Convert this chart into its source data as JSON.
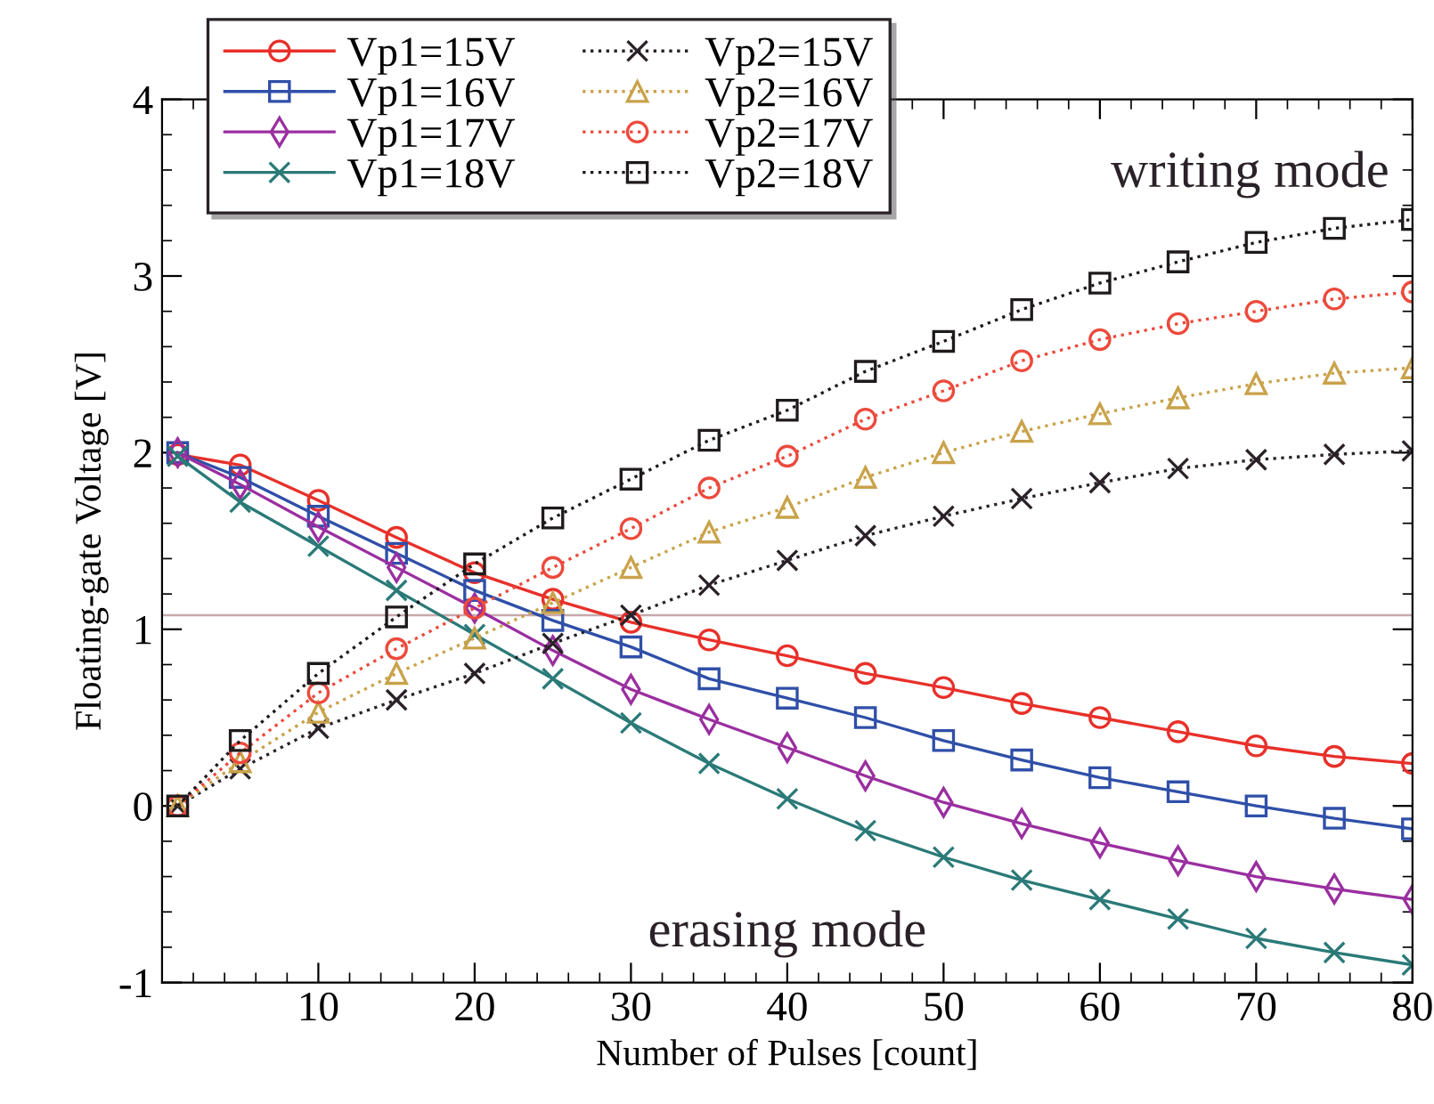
{
  "chart_data": {
    "type": "line",
    "xlabel": "Number of Pulses [count]",
    "ylabel": "Floating-gate Voltage [V]",
    "x": [
      1,
      5,
      10,
      15,
      20,
      25,
      30,
      35,
      40,
      45,
      50,
      55,
      60,
      65,
      70,
      75,
      80
    ],
    "xlim": [
      0,
      80
    ],
    "xticks": [
      10,
      20,
      30,
      40,
      50,
      60,
      70,
      80
    ],
    "ylim": [
      -1,
      4
    ],
    "yticks": [
      -1,
      0,
      1,
      2,
      3,
      4
    ],
    "grid": false,
    "legend": "top left",
    "series": [
      {
        "name": "Vp1=15V",
        "color": "#e8302a",
        "marker": "circle",
        "line_style": "solid",
        "values": [
          1.99,
          1.93,
          1.73,
          1.52,
          1.32,
          1.17,
          1.04,
          0.94,
          0.85,
          0.75,
          0.67,
          0.58,
          0.5,
          0.42,
          0.34,
          0.28,
          0.24
        ]
      },
      {
        "name": "Vp1=16V",
        "color": "#2f4fa8",
        "marker": "square",
        "line_style": "solid",
        "values": [
          2.0,
          1.86,
          1.64,
          1.43,
          1.22,
          1.05,
          0.9,
          0.72,
          0.61,
          0.5,
          0.37,
          0.26,
          0.16,
          0.08,
          0.0,
          -0.07,
          -0.13
        ]
      },
      {
        "name": "Vp1=17V",
        "color": "#9a2fa0",
        "marker": "diamond",
        "line_style": "solid",
        "values": [
          2.0,
          1.82,
          1.58,
          1.35,
          1.12,
          0.88,
          0.66,
          0.49,
          0.33,
          0.17,
          0.02,
          -0.1,
          -0.21,
          -0.31,
          -0.4,
          -0.47,
          -0.53
        ]
      },
      {
        "name": "Vp1=18V",
        "color": "#2a7a78",
        "marker": "cross",
        "line_style": "solid",
        "values": [
          1.98,
          1.72,
          1.47,
          1.22,
          0.97,
          0.72,
          0.47,
          0.24,
          0.04,
          -0.14,
          -0.29,
          -0.42,
          -0.53,
          -0.64,
          -0.75,
          -0.83,
          -0.9
        ]
      },
      {
        "name": "Vp2=15V",
        "color": "#2a2228",
        "marker": "cross",
        "line_style": "dotted",
        "values": [
          0.0,
          0.21,
          0.44,
          0.6,
          0.75,
          0.92,
          1.08,
          1.25,
          1.39,
          1.53,
          1.64,
          1.74,
          1.83,
          1.91,
          1.96,
          1.99,
          2.01
        ]
      },
      {
        "name": "Vp2=16V",
        "color": "#c9a24a",
        "marker": "triangle",
        "line_style": "dotted",
        "values": [
          0.0,
          0.25,
          0.53,
          0.75,
          0.95,
          1.15,
          1.35,
          1.55,
          1.69,
          1.86,
          2.0,
          2.12,
          2.22,
          2.31,
          2.39,
          2.45,
          2.48
        ]
      },
      {
        "name": "Vp2=17V",
        "color": "#ec4a3c",
        "marker": "circle",
        "line_style": "dotted",
        "values": [
          0.0,
          0.3,
          0.64,
          0.89,
          1.12,
          1.35,
          1.57,
          1.8,
          1.98,
          2.19,
          2.35,
          2.52,
          2.64,
          2.73,
          2.8,
          2.87,
          2.91
        ]
      },
      {
        "name": "Vp2=18V",
        "color": "#1e1a1c",
        "marker": "square",
        "line_style": "dotted",
        "values": [
          0.0,
          0.37,
          0.75,
          1.07,
          1.37,
          1.63,
          1.85,
          2.07,
          2.24,
          2.46,
          2.63,
          2.81,
          2.96,
          3.08,
          3.19,
          3.27,
          3.32
        ]
      }
    ],
    "ref_lines": [
      {
        "axis": "y",
        "value": 1.08,
        "color": "#c8a8ac",
        "line_style": "solid"
      }
    ],
    "annotations": [
      "writing mode",
      "erasing mode"
    ]
  }
}
